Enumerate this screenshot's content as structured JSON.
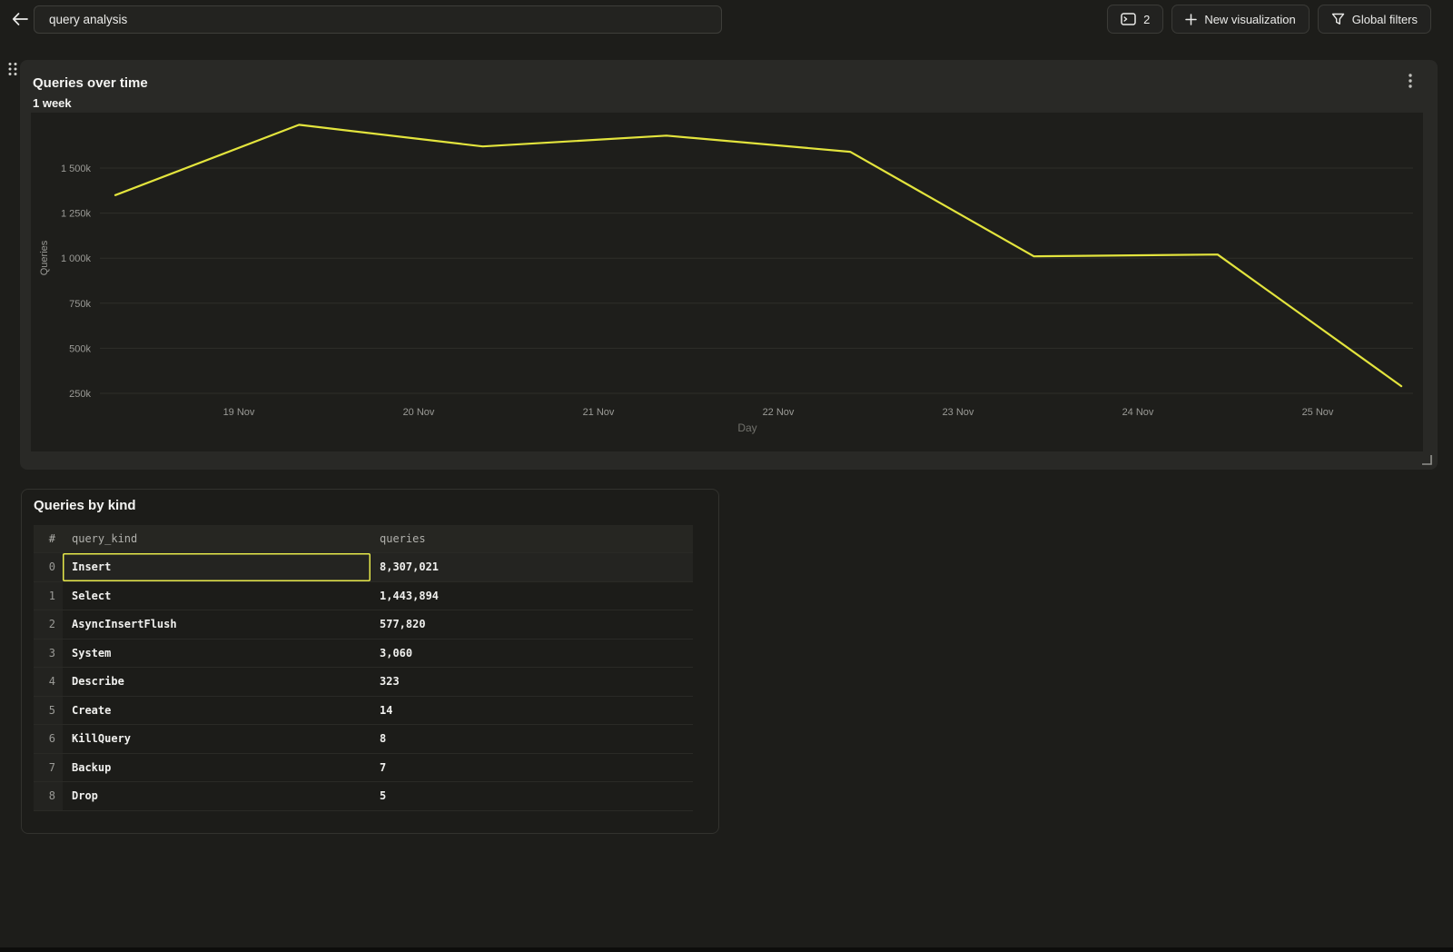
{
  "topbar": {
    "search_value": "query analysis",
    "back_icon": "arrow-left-icon",
    "buttons": [
      {
        "icon": "console-window-icon",
        "label": "2"
      },
      {
        "icon": "plus-icon",
        "label": "New visualization"
      },
      {
        "icon": "funnel-icon",
        "label": "Global filters"
      }
    ]
  },
  "chart_panel": {
    "title": "Queries over time",
    "subtitle": "1 week",
    "menu_icon": "kebab-menu-icon",
    "drag_icon": "drag-handle-icon",
    "resize_icon": "resize-corner-icon"
  },
  "chart_data": {
    "type": "line",
    "title": "Queries over time",
    "subtitle": "1 week",
    "xlabel": "Day",
    "ylabel": "Queries",
    "x_tick_labels": [
      "19 Nov",
      "20 Nov",
      "21 Nov",
      "22 Nov",
      "23 Nov",
      "24 Nov",
      "25 Nov"
    ],
    "y_ticks": [
      {
        "value": 1500000,
        "label": "1 500k"
      },
      {
        "value": 1250000,
        "label": "1 250k"
      },
      {
        "value": 1000000,
        "label": "1 000k"
      },
      {
        "value": 750000,
        "label": "750k"
      },
      {
        "value": 500000,
        "label": "500k"
      },
      {
        "value": 250000,
        "label": "250k"
      }
    ],
    "ylim": [
      0,
      1800000
    ],
    "grid": true,
    "legend": false,
    "series": [
      {
        "name": "Queries",
        "color": "#e3e43d",
        "values": [
          1350000,
          1740000,
          1620000,
          1680000,
          1590000,
          1010000,
          1020000,
          290000
        ]
      }
    ],
    "colors": {
      "grid": "#2e2e2a",
      "tick_label": "#9b9b97",
      "axis_title": "#9b9b97",
      "xlabel_dim": "#71716c",
      "plot_bg": "#1e1e1b"
    }
  },
  "table_panel": {
    "title": "Queries by kind",
    "columns": [
      "#",
      "query_kind",
      "queries"
    ],
    "rows": [
      {
        "index": "0",
        "query_kind": "Insert",
        "queries": "8,307,021",
        "selected": true
      },
      {
        "index": "1",
        "query_kind": "Select",
        "queries": "1,443,894",
        "selected": false
      },
      {
        "index": "2",
        "query_kind": "AsyncInsertFlush",
        "queries": "577,820",
        "selected": false
      },
      {
        "index": "3",
        "query_kind": "System",
        "queries": "3,060",
        "selected": false
      },
      {
        "index": "4",
        "query_kind": "Describe",
        "queries": "323",
        "selected": false
      },
      {
        "index": "5",
        "query_kind": "Create",
        "queries": "14",
        "selected": false
      },
      {
        "index": "6",
        "query_kind": "KillQuery",
        "queries": "8",
        "selected": false
      },
      {
        "index": "7",
        "query_kind": "Backup",
        "queries": "7",
        "selected": false
      },
      {
        "index": "8",
        "query_kind": "Drop",
        "queries": "5",
        "selected": false
      }
    ],
    "selection_color": "#e6e84a"
  }
}
